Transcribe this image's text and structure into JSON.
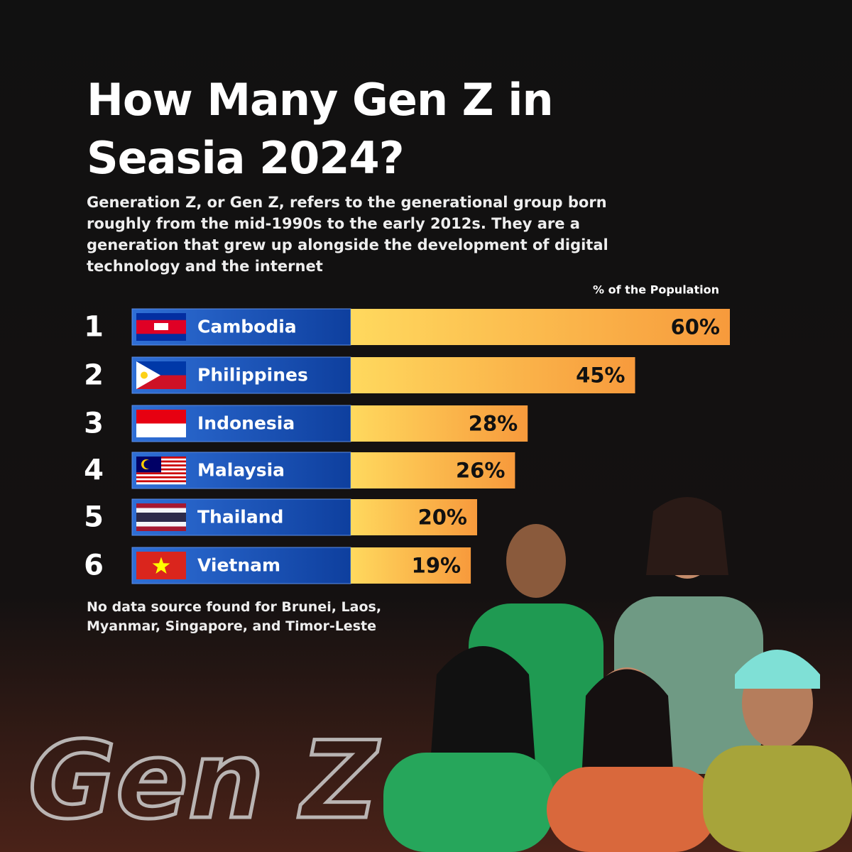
{
  "chart_data": {
    "type": "bar",
    "title": "How Many Gen Z in Seasia 2024?",
    "subtitle": "Generation Z, or Gen Z, refers to the generational group born roughly from the mid-1990s to the early 2012s. They are a generation that grew up alongside the development of digital technology and the internet",
    "x_label": "% of the Population",
    "ranks": [
      "1",
      "2",
      "3",
      "4",
      "5",
      "6"
    ],
    "categories": [
      "Cambodia",
      "Philippines",
      "Indonesia",
      "Malaysia",
      "Thailand",
      "Vietnam"
    ],
    "values": [
      60,
      45,
      28,
      26,
      20,
      19
    ],
    "value_labels": [
      "60%",
      "45%",
      "28%",
      "26%",
      "20%",
      "19%"
    ],
    "xlim": [
      0,
      60
    ],
    "color": "#fbb347",
    "note": "No data source found for Brunei, Laos, Myanmar, Singapore, and Timor-Leste",
    "decoration_text": "Gen Z"
  }
}
